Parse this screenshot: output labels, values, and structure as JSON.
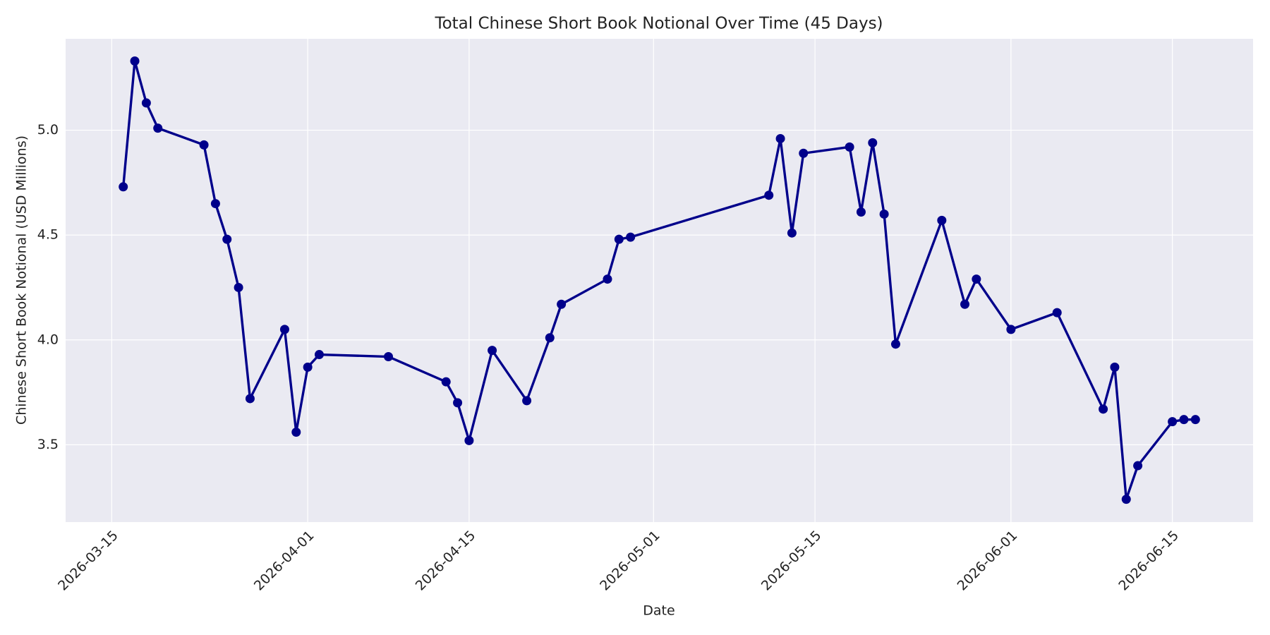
{
  "chart_data": {
    "type": "line",
    "title": "Total Chinese Short Book Notional Over Time (45 Days)",
    "x_label": "Date",
    "y_label": "Chinese Short Book Notional (USD Millions)",
    "x": [
      "2026-03-16",
      "2026-03-17",
      "2026-03-18",
      "2026-03-19",
      "2026-03-23",
      "2026-03-24",
      "2026-03-25",
      "2026-03-26",
      "2026-03-27",
      "2026-03-30",
      "2026-03-31",
      "2026-04-01",
      "2026-04-02",
      "2026-04-08",
      "2026-04-13",
      "2026-04-14",
      "2026-04-15",
      "2026-04-17",
      "2026-04-20",
      "2026-04-22",
      "2026-04-23",
      "2026-04-27",
      "2026-04-28",
      "2026-04-29",
      "2026-05-11",
      "2026-05-12",
      "2026-05-13",
      "2026-05-14",
      "2026-05-18",
      "2026-05-19",
      "2026-05-20",
      "2026-05-21",
      "2026-05-22",
      "2026-05-26",
      "2026-05-28",
      "2026-05-29",
      "2026-06-01",
      "2026-06-05",
      "2026-06-09",
      "2026-06-10",
      "2026-06-11",
      "2026-06-12",
      "2026-06-15",
      "2026-06-16",
      "2026-06-17"
    ],
    "values": [
      4.73,
      5.33,
      5.13,
      5.01,
      4.93,
      4.65,
      4.48,
      4.25,
      3.72,
      4.05,
      3.56,
      3.87,
      3.93,
      3.92,
      3.8,
      3.7,
      3.52,
      3.95,
      3.71,
      4.01,
      4.17,
      4.29,
      4.48,
      4.49,
      4.69,
      4.96,
      4.51,
      4.89,
      4.92,
      4.61,
      4.94,
      4.6,
      3.98,
      4.57,
      4.17,
      4.29,
      4.05,
      4.13,
      3.67,
      3.87,
      3.24,
      3.4,
      3.61,
      3.62,
      3.62
    ],
    "color": "#00008b",
    "xlim": [
      "2026-03-11",
      "2026-06-22"
    ],
    "xticks": [
      "2026-03-15",
      "2026-04-01",
      "2026-04-15",
      "2026-05-01",
      "2026-05-15",
      "2026-06-01",
      "2026-06-15"
    ],
    "ylim": [
      3.131,
      5.436
    ],
    "yticks": [
      3.5,
      {
        "value": 4,
        "label": "4.0"
      },
      4.5,
      {
        "value": 5,
        "label": "5.0"
      }
    ],
    "grid": true
  }
}
